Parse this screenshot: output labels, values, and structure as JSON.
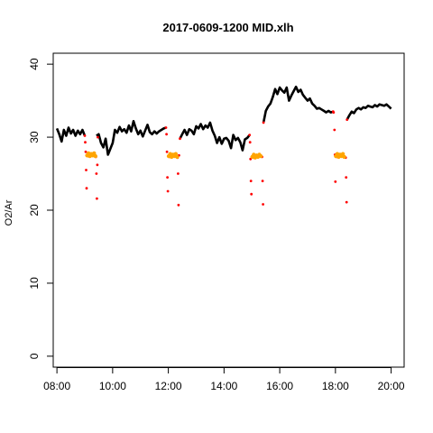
{
  "chart_data": {
    "type": "line",
    "title": "2017-0609-1200 MID.xlh",
    "xlabel": "",
    "ylabel": "O2/Ar",
    "xlim": [
      "07:52",
      "20:28"
    ],
    "ylim": [
      -1.5,
      41.5
    ],
    "x_ticks": [
      "08:00",
      "10:00",
      "12:00",
      "14:00",
      "16:00",
      "18:00",
      "20:00"
    ],
    "y_ticks": [
      0,
      10,
      20,
      30,
      40
    ],
    "grid": false,
    "legend": "none",
    "colors": {
      "main": "#000000",
      "spike": "#ff0000",
      "calibration": "#ffa500"
    },
    "series": [
      {
        "color": "#000000",
        "points": [
          [
            "08:00",
            31.2
          ],
          [
            "08:05",
            30.4
          ],
          [
            "08:10",
            29.4
          ],
          [
            "08:15",
            31.0
          ],
          [
            "08:20",
            30.2
          ],
          [
            "08:25",
            31.3
          ],
          [
            "08:30",
            30.5
          ],
          [
            "08:35",
            31.0
          ],
          [
            "08:40",
            30.2
          ],
          [
            "08:45",
            30.9
          ],
          [
            "08:50",
            30.4
          ],
          [
            "08:55",
            31.0
          ],
          [
            "09:00",
            30.2
          ],
          [
            "09:25",
            30.2
          ],
          [
            "09:30",
            30.4
          ],
          [
            "09:35",
            29.2
          ],
          [
            "09:40",
            28.6
          ],
          [
            "09:45",
            29.8
          ],
          [
            "09:50",
            27.6
          ],
          [
            "09:55",
            28.4
          ],
          [
            "10:00",
            29.2
          ],
          [
            "10:05",
            31.0
          ],
          [
            "10:10",
            30.6
          ],
          [
            "10:15",
            31.4
          ],
          [
            "10:20",
            30.8
          ],
          [
            "10:25",
            31.1
          ],
          [
            "10:30",
            30.6
          ],
          [
            "10:35",
            31.6
          ],
          [
            "10:40",
            30.8
          ],
          [
            "10:45",
            32.2
          ],
          [
            "10:50",
            31.2
          ],
          [
            "10:55",
            30.4
          ],
          [
            "11:00",
            30.9
          ],
          [
            "11:05",
            30.1
          ],
          [
            "11:10",
            30.9
          ],
          [
            "11:15",
            31.7
          ],
          [
            "11:20",
            30.7
          ],
          [
            "11:25",
            30.4
          ],
          [
            "11:30",
            30.8
          ],
          [
            "11:35",
            30.5
          ],
          [
            "11:40",
            30.8
          ],
          [
            "11:45",
            31.0
          ],
          [
            "11:50",
            31.2
          ],
          [
            "11:55",
            31.3
          ],
          [
            "12:25",
            29.8
          ],
          [
            "12:30",
            30.4
          ],
          [
            "12:35",
            31.0
          ],
          [
            "12:40",
            30.3
          ],
          [
            "12:45",
            31.1
          ],
          [
            "12:50",
            30.9
          ],
          [
            "12:55",
            30.4
          ],
          [
            "13:00",
            31.5
          ],
          [
            "13:05",
            31.2
          ],
          [
            "13:10",
            31.8
          ],
          [
            "13:15",
            31.1
          ],
          [
            "13:20",
            31.6
          ],
          [
            "13:25",
            31.3
          ],
          [
            "13:30",
            32.0
          ],
          [
            "13:35",
            30.9
          ],
          [
            "13:40",
            30.2
          ],
          [
            "13:45",
            29.2
          ],
          [
            "13:50",
            30.0
          ],
          [
            "13:55",
            29.1
          ],
          [
            "14:00",
            29.8
          ],
          [
            "14:05",
            29.9
          ],
          [
            "14:10",
            29.5
          ],
          [
            "14:15",
            28.5
          ],
          [
            "14:20",
            30.3
          ],
          [
            "14:25",
            29.6
          ],
          [
            "14:30",
            29.9
          ],
          [
            "14:35",
            29.3
          ],
          [
            "14:40",
            28.2
          ],
          [
            "14:45",
            29.7
          ],
          [
            "14:50",
            29.9
          ],
          [
            "14:55",
            30.3
          ],
          [
            "15:25",
            32.0
          ],
          [
            "15:30",
            33.6
          ],
          [
            "15:35",
            34.2
          ],
          [
            "15:40",
            34.6
          ],
          [
            "15:45",
            35.5
          ],
          [
            "15:50",
            36.6
          ],
          [
            "15:55",
            35.9
          ],
          [
            "16:00",
            36.8
          ],
          [
            "16:05",
            36.4
          ],
          [
            "16:10",
            36.1
          ],
          [
            "16:15",
            36.8
          ],
          [
            "16:20",
            35.0
          ],
          [
            "16:25",
            35.7
          ],
          [
            "16:30",
            36.3
          ],
          [
            "16:35",
            36.9
          ],
          [
            "16:40",
            36.2
          ],
          [
            "16:45",
            36.5
          ],
          [
            "16:50",
            35.8
          ],
          [
            "16:55",
            35.4
          ],
          [
            "17:00",
            35.0
          ],
          [
            "17:05",
            35.3
          ],
          [
            "17:10",
            34.6
          ],
          [
            "17:15",
            34.3
          ],
          [
            "17:20",
            33.9
          ],
          [
            "17:25",
            34.0
          ],
          [
            "17:30",
            33.8
          ],
          [
            "17:35",
            33.6
          ],
          [
            "17:40",
            33.4
          ],
          [
            "17:45",
            33.6
          ],
          [
            "17:50",
            33.4
          ],
          [
            "17:55",
            33.5
          ],
          [
            "18:25",
            32.4
          ],
          [
            "18:30",
            33.0
          ],
          [
            "18:35",
            33.5
          ],
          [
            "18:40",
            33.3
          ],
          [
            "18:45",
            33.8
          ],
          [
            "18:50",
            34.0
          ],
          [
            "18:55",
            33.8
          ],
          [
            "19:00",
            34.1
          ],
          [
            "19:05",
            34.0
          ],
          [
            "19:10",
            34.3
          ],
          [
            "19:15",
            34.2
          ],
          [
            "19:20",
            34.1
          ],
          [
            "19:25",
            34.4
          ],
          [
            "19:30",
            34.2
          ],
          [
            "19:35",
            34.5
          ],
          [
            "19:40",
            34.4
          ],
          [
            "19:45",
            34.3
          ],
          [
            "19:50",
            34.5
          ],
          [
            "19:55",
            34.2
          ],
          [
            "20:00",
            33.9
          ]
        ]
      },
      {
        "color": "#ff0000",
        "points": [
          [
            "09:00",
            30.2
          ],
          [
            "09:01",
            29.3
          ],
          [
            "09:02",
            28.0
          ],
          [
            "09:03",
            25.5
          ],
          [
            "09:04",
            23.0
          ],
          [
            "09:06",
            27.4
          ],
          [
            "09:24",
            27.3
          ],
          [
            "09:25",
            25.0
          ],
          [
            "09:26",
            21.6
          ],
          [
            "09:27",
            26.2
          ],
          [
            "09:28",
            30.0
          ],
          [
            "11:55",
            31.3
          ],
          [
            "11:56",
            30.4
          ],
          [
            "11:57",
            28.0
          ],
          [
            "11:58",
            24.5
          ],
          [
            "11:59",
            22.6
          ],
          [
            "12:02",
            27.3
          ],
          [
            "12:20",
            27.2
          ],
          [
            "12:21",
            25.0
          ],
          [
            "12:22",
            20.7
          ],
          [
            "12:23",
            27.5
          ],
          [
            "12:25",
            29.8
          ],
          [
            "14:55",
            30.3
          ],
          [
            "14:56",
            29.3
          ],
          [
            "14:57",
            27.0
          ],
          [
            "14:58",
            24.0
          ],
          [
            "14:59",
            22.2
          ],
          [
            "15:02",
            27.2
          ],
          [
            "15:22",
            27.3
          ],
          [
            "15:23",
            24.0
          ],
          [
            "15:24",
            20.8
          ],
          [
            "15:25",
            32.0
          ],
          [
            "17:55",
            33.5
          ],
          [
            "17:56",
            33.4
          ],
          [
            "17:58",
            31.0
          ],
          [
            "17:59",
            27.6
          ],
          [
            "18:00",
            23.9
          ],
          [
            "18:02",
            27.3
          ],
          [
            "18:22",
            27.2
          ],
          [
            "18:23",
            24.5
          ],
          [
            "18:24",
            21.1
          ],
          [
            "18:25",
            32.4
          ]
        ]
      },
      {
        "color": "#ffa500",
        "points": [
          [
            "09:05",
            27.5
          ],
          [
            "09:08",
            27.8
          ],
          [
            "09:11",
            27.4
          ],
          [
            "09:14",
            27.7
          ],
          [
            "09:17",
            27.5
          ],
          [
            "09:20",
            27.8
          ],
          [
            "09:23",
            27.4
          ],
          [
            "12:01",
            27.4
          ],
          [
            "12:04",
            27.7
          ],
          [
            "12:07",
            27.3
          ],
          [
            "12:10",
            27.6
          ],
          [
            "12:13",
            27.4
          ],
          [
            "12:16",
            27.7
          ],
          [
            "12:19",
            27.3
          ],
          [
            "15:01",
            27.3
          ],
          [
            "15:04",
            27.6
          ],
          [
            "15:07",
            27.2
          ],
          [
            "15:10",
            27.5
          ],
          [
            "15:13",
            27.3
          ],
          [
            "15:16",
            27.6
          ],
          [
            "15:19",
            27.4
          ],
          [
            "18:01",
            27.4
          ],
          [
            "18:04",
            27.7
          ],
          [
            "18:07",
            27.3
          ],
          [
            "18:10",
            27.6
          ],
          [
            "18:13",
            27.4
          ],
          [
            "18:16",
            27.7
          ],
          [
            "18:19",
            27.3
          ]
        ]
      }
    ]
  }
}
